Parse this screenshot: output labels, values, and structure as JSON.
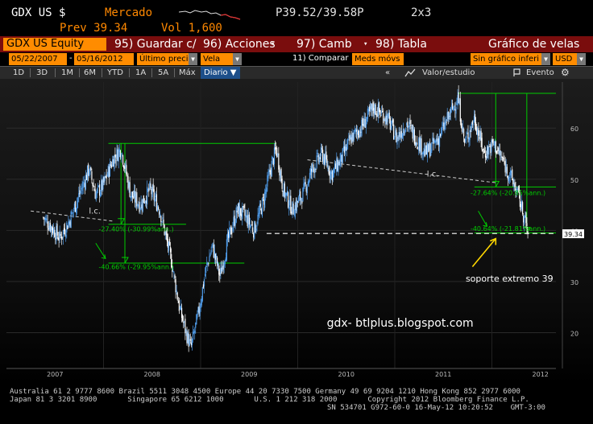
{
  "header": {
    "ticker": "GDX US $",
    "market": "Mercado",
    "prev": "Prev 39.34",
    "vol": "Vol 1,600",
    "price": "P39.52/39.58P",
    "grid": "2x3"
  },
  "toolbar": {
    "equity": "GDX US Equity",
    "save": "95) Guardar c/",
    "actions": "96) Acciones",
    "change": "97) Camb",
    "table": "98) Tabla",
    "title": "Gráfico de velas"
  },
  "params": {
    "start_date": "05/22/2007",
    "end_date": "05/16/2012",
    "price_field": "Último preci",
    "chart_type": "Vela",
    "compare": "11) Comparar",
    "moving_avg": "Meds móvs",
    "indicator": "Sin gráfico inferi",
    "currency": "USD"
  },
  "tabs": {
    "items": [
      "1D",
      "3D",
      "1M",
      "6M",
      "YTD",
      "1A",
      "5A",
      "Máx"
    ],
    "selected": "Diario",
    "value_study": "Valor/estudio",
    "event": "Evento"
  },
  "chart_data": {
    "type": "candlestick",
    "x": [
      "2007",
      "2008",
      "2009",
      "2010",
      "2011",
      "2012"
    ],
    "y_ticks": [
      20,
      30,
      40,
      50,
      60
    ],
    "ylim": [
      13,
      69
    ],
    "last_price": "39.34",
    "close_path": [
      [
        2007.38,
        42.5
      ],
      [
        2007.45,
        41.0
      ],
      [
        2007.55,
        38.5
      ],
      [
        2007.65,
        42.0
      ],
      [
        2007.75,
        47.0
      ],
      [
        2007.85,
        52.0
      ],
      [
        2007.92,
        47.0
      ],
      [
        2008.0,
        49.0
      ],
      [
        2008.1,
        54.0
      ],
      [
        2008.18,
        56.0
      ],
      [
        2008.28,
        47.0
      ],
      [
        2008.38,
        45.0
      ],
      [
        2008.48,
        48.0
      ],
      [
        2008.58,
        44.0
      ],
      [
        2008.65,
        38.0
      ],
      [
        2008.7,
        34.0
      ],
      [
        2008.78,
        25.0
      ],
      [
        2008.85,
        20.0
      ],
      [
        2008.9,
        17.0
      ],
      [
        2008.98,
        24.0
      ],
      [
        2009.05,
        32.0
      ],
      [
        2009.12,
        37.0
      ],
      [
        2009.2,
        31.0
      ],
      [
        2009.28,
        38.0
      ],
      [
        2009.38,
        44.0
      ],
      [
        2009.45,
        43.0
      ],
      [
        2009.55,
        40.0
      ],
      [
        2009.65,
        46.0
      ],
      [
        2009.72,
        52.0
      ],
      [
        2009.78,
        56.0
      ],
      [
        2009.85,
        48.0
      ],
      [
        2009.95,
        44.0
      ],
      [
        2010.05,
        47.0
      ],
      [
        2010.15,
        52.0
      ],
      [
        2010.25,
        55.0
      ],
      [
        2010.35,
        51.0
      ],
      [
        2010.45,
        54.0
      ],
      [
        2010.55,
        58.0
      ],
      [
        2010.65,
        60.0
      ],
      [
        2010.78,
        64.0
      ],
      [
        2010.92,
        62.0
      ],
      [
        2011.02,
        58.0
      ],
      [
        2011.12,
        61.0
      ],
      [
        2011.22,
        58.0
      ],
      [
        2011.32,
        55.0
      ],
      [
        2011.45,
        58.0
      ],
      [
        2011.55,
        62.0
      ],
      [
        2011.65,
        66.0
      ],
      [
        2011.72,
        57.0
      ],
      [
        2011.82,
        62.0
      ],
      [
        2011.92,
        55.0
      ],
      [
        2012.02,
        57.0
      ],
      [
        2012.1,
        54.0
      ],
      [
        2012.18,
        51.0
      ],
      [
        2012.25,
        48.0
      ],
      [
        2012.3,
        45.0
      ],
      [
        2012.34,
        42.0
      ],
      [
        2012.37,
        39.3
      ]
    ],
    "annotations": {
      "lc1": "l.c.",
      "lc2": "l.c.",
      "pct1": "-27.40% (-30.99%ann.)",
      "pct2": "-40.66% (-29.95%ann.)",
      "pct3": "-27.64% (-20.85%ann.)",
      "pct4": "-40.64% (-21.81%ann.)",
      "support": "soporte extremo 39",
      "watermark": "gdx- btlplus.blogspot.com"
    },
    "colors": {
      "up": "#4f9be8",
      "down": "#ffffff",
      "guide": "#00cc00",
      "lc": "#cccccc"
    }
  },
  "footer": {
    "line1": "Australia 61 2 9777 8600 Brazil 5511 3048 4500 Europe 44 20 7330 7500 Germany 49 69 9204 1210 Hong Kong 852 2977 6000",
    "line2": "Japan 81 3 3201 8900       Singapore 65 6212 1000       U.S. 1 212 318 2000       Copyright 2012 Bloomberg Finance L.P.",
    "line3": "SN 534701 G972-60-0 16-May-12 10:20:52    GMT-3:00"
  }
}
